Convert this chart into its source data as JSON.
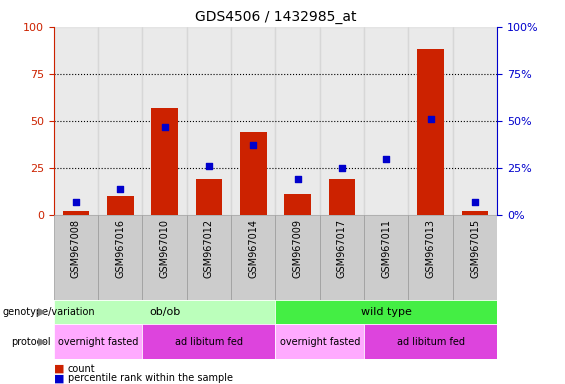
{
  "title": "GDS4506 / 1432985_at",
  "samples": [
    "GSM967008",
    "GSM967016",
    "GSM967010",
    "GSM967012",
    "GSM967014",
    "GSM967009",
    "GSM967017",
    "GSM967011",
    "GSM967013",
    "GSM967015"
  ],
  "count_values": [
    2,
    10,
    57,
    19,
    44,
    11,
    19,
    0,
    88,
    2
  ],
  "percentile_values": [
    7,
    14,
    47,
    26,
    37,
    19,
    25,
    30,
    51,
    7
  ],
  "bar_color": "#cc2200",
  "dot_color": "#0000cc",
  "ylim": [
    0,
    100
  ],
  "yticks": [
    0,
    25,
    50,
    75,
    100
  ],
  "grid_color": "#000000",
  "genotype_groups": [
    {
      "label": "ob/ob",
      "start": 0,
      "end": 5,
      "color": "#bbffbb"
    },
    {
      "label": "wild type",
      "start": 5,
      "end": 10,
      "color": "#44ee44"
    }
  ],
  "protocol_groups": [
    {
      "label": "overnight fasted",
      "start": 0,
      "end": 2,
      "color": "#ffaaff"
    },
    {
      "label": "ad libitum fed",
      "start": 2,
      "end": 5,
      "color": "#dd44dd"
    },
    {
      "label": "overnight fasted",
      "start": 5,
      "end": 7,
      "color": "#ffaaff"
    },
    {
      "label": "ad libitum fed",
      "start": 7,
      "end": 10,
      "color": "#dd44dd"
    }
  ],
  "legend_count_color": "#cc2200",
  "legend_dot_color": "#0000cc",
  "tick_label_color_left": "#cc2200",
  "tick_label_color_right": "#0000cc",
  "background_color": "#ffffff",
  "col_bg_color": "#cccccc",
  "col_border_color": "#999999"
}
